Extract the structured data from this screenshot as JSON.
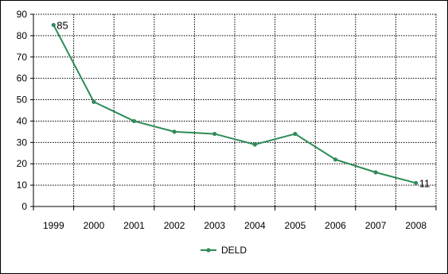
{
  "chart_data": {
    "type": "line",
    "x": [
      "1999",
      "2000",
      "2001",
      "2002",
      "2003",
      "2004",
      "2005",
      "2006",
      "2007",
      "2008"
    ],
    "series": [
      {
        "name": "DELD",
        "values": [
          85,
          49,
          40,
          35,
          34,
          29,
          34,
          22,
          16,
          11
        ],
        "color": "#2e8b57"
      }
    ],
    "ylim": [
      0,
      90
    ],
    "yticks": [
      "0",
      "10",
      "20",
      "30",
      "40",
      "50",
      "60",
      "70",
      "80",
      "90"
    ],
    "data_labels": [
      {
        "index": 0,
        "text": "85"
      },
      {
        "index": 9,
        "text": "11"
      }
    ],
    "grid": "dotted",
    "legend": "bottom-center",
    "title": "",
    "xlabel": "",
    "ylabel": ""
  }
}
